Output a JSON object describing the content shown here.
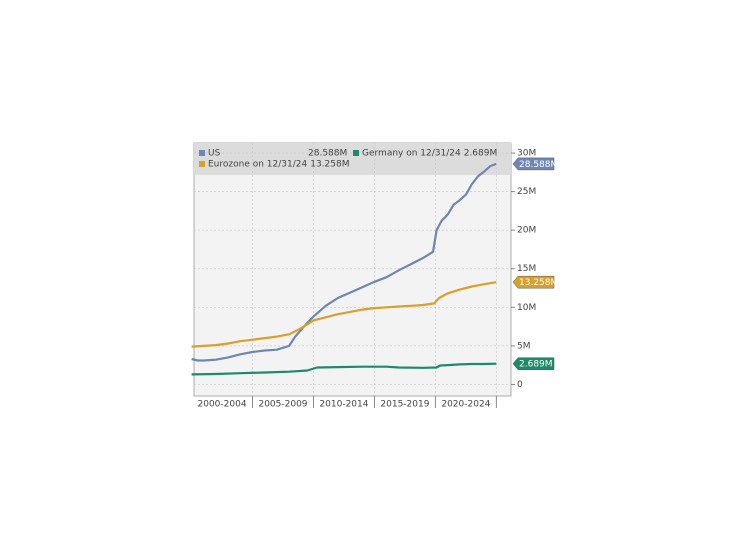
{
  "chart_data": {
    "type": "line",
    "series": [
      {
        "name": "US",
        "color": "#6f86b5",
        "end_label": "28.588M",
        "x": [
          2000,
          2000.5,
          2001,
          2002,
          2003,
          2004,
          2005,
          2006,
          2007,
          2008,
          2008.5,
          2009,
          2009.5,
          2010,
          2010.5,
          2011,
          2012,
          2013,
          2014,
          2015,
          2016,
          2017,
          2018,
          2019,
          2019.8,
          2020.1,
          2020.5,
          2021,
          2021.5,
          2022,
          2022.5,
          2023,
          2023.5,
          2024,
          2024.5,
          2024.99
        ],
        "values": [
          3.3,
          3.1,
          3.1,
          3.2,
          3.5,
          3.9,
          4.2,
          4.4,
          4.5,
          5.0,
          6.2,
          7.1,
          8.0,
          8.8,
          9.5,
          10.2,
          11.2,
          11.9,
          12.6,
          13.3,
          13.9,
          14.8,
          15.6,
          16.4,
          17.2,
          20.0,
          21.2,
          22.0,
          23.3,
          23.9,
          24.6,
          26.0,
          27.0,
          27.6,
          28.3,
          28.588
        ]
      },
      {
        "name": "Germany on 12/31/24",
        "color": "#1f8a6a",
        "end_label": "2.689M",
        "x": [
          2000,
          2002,
          2004,
          2006,
          2008,
          2009.5,
          2010.3,
          2012,
          2014,
          2016,
          2017,
          2019,
          2020.1,
          2020.4,
          2021,
          2022,
          2023,
          2024,
          2024.99
        ],
        "values": [
          1.3,
          1.35,
          1.45,
          1.55,
          1.65,
          1.8,
          2.2,
          2.25,
          2.3,
          2.3,
          2.2,
          2.15,
          2.2,
          2.45,
          2.5,
          2.6,
          2.65,
          2.65,
          2.689
        ]
      },
      {
        "name": "Eurozone on 12/31/24",
        "color": "#d9a02a",
        "end_label": "13.258M",
        "x": [
          2000,
          2001,
          2002,
          2003,
          2004,
          2005,
          2006,
          2007,
          2008,
          2009,
          2009.5,
          2010,
          2011,
          2012,
          2013,
          2014,
          2015,
          2016,
          2017,
          2018,
          2019,
          2019.9,
          2020.3,
          2021,
          2022,
          2023,
          2024,
          2024.99
        ],
        "values": [
          4.9,
          5.0,
          5.1,
          5.3,
          5.6,
          5.8,
          6.0,
          6.2,
          6.5,
          7.3,
          7.8,
          8.3,
          8.7,
          9.1,
          9.4,
          9.7,
          9.9,
          10.0,
          10.1,
          10.2,
          10.3,
          10.5,
          11.2,
          11.8,
          12.3,
          12.7,
          13.0,
          13.258
        ]
      }
    ],
    "xlim": [
      2000.2,
      2026.2
    ],
    "xticks": [
      {
        "value": 2002.5,
        "label": "2000-2004"
      },
      {
        "value": 2007.5,
        "label": "2005-2009"
      },
      {
        "value": 2012.5,
        "label": "2010-2014"
      },
      {
        "value": 2017.5,
        "label": "2015-2019"
      },
      {
        "value": 2022.5,
        "label": "2020-2024"
      }
    ],
    "xgrid": [
      2005,
      2010,
      2015,
      2020,
      2025
    ],
    "ylim": [
      -1.5,
      31.3
    ],
    "yticks": [
      0,
      {
        "value": 5,
        "label": "5M"
      },
      {
        "value": 10,
        "label": "10M"
      },
      {
        "value": 15,
        "label": "15M"
      },
      {
        "value": 20,
        "label": "20M"
      },
      {
        "value": 25,
        "label": "25M"
      },
      {
        "value": 30,
        "label": "30M"
      }
    ],
    "grid": true
  }
}
